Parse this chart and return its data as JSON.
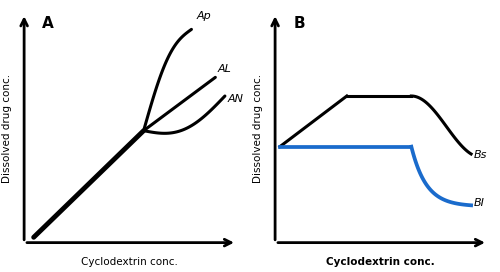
{
  "panel_A_label": "A",
  "panel_B_label": "B",
  "ylabel": "Dissolved drug conc.",
  "xlabel": "Cyclodextrin conc.",
  "line_color_black": "#000000",
  "line_color_blue": "#1a6bcc",
  "label_Ap": "Ap",
  "label_AL": "AL",
  "label_AN": "AN",
  "label_Bs": "Bs",
  "label_BI": "BI",
  "lw_main": 2.2,
  "lw_thick": 3.5,
  "fontsize_label": 8,
  "fontsize_panel": 11,
  "fontsize_axis": 7.5
}
